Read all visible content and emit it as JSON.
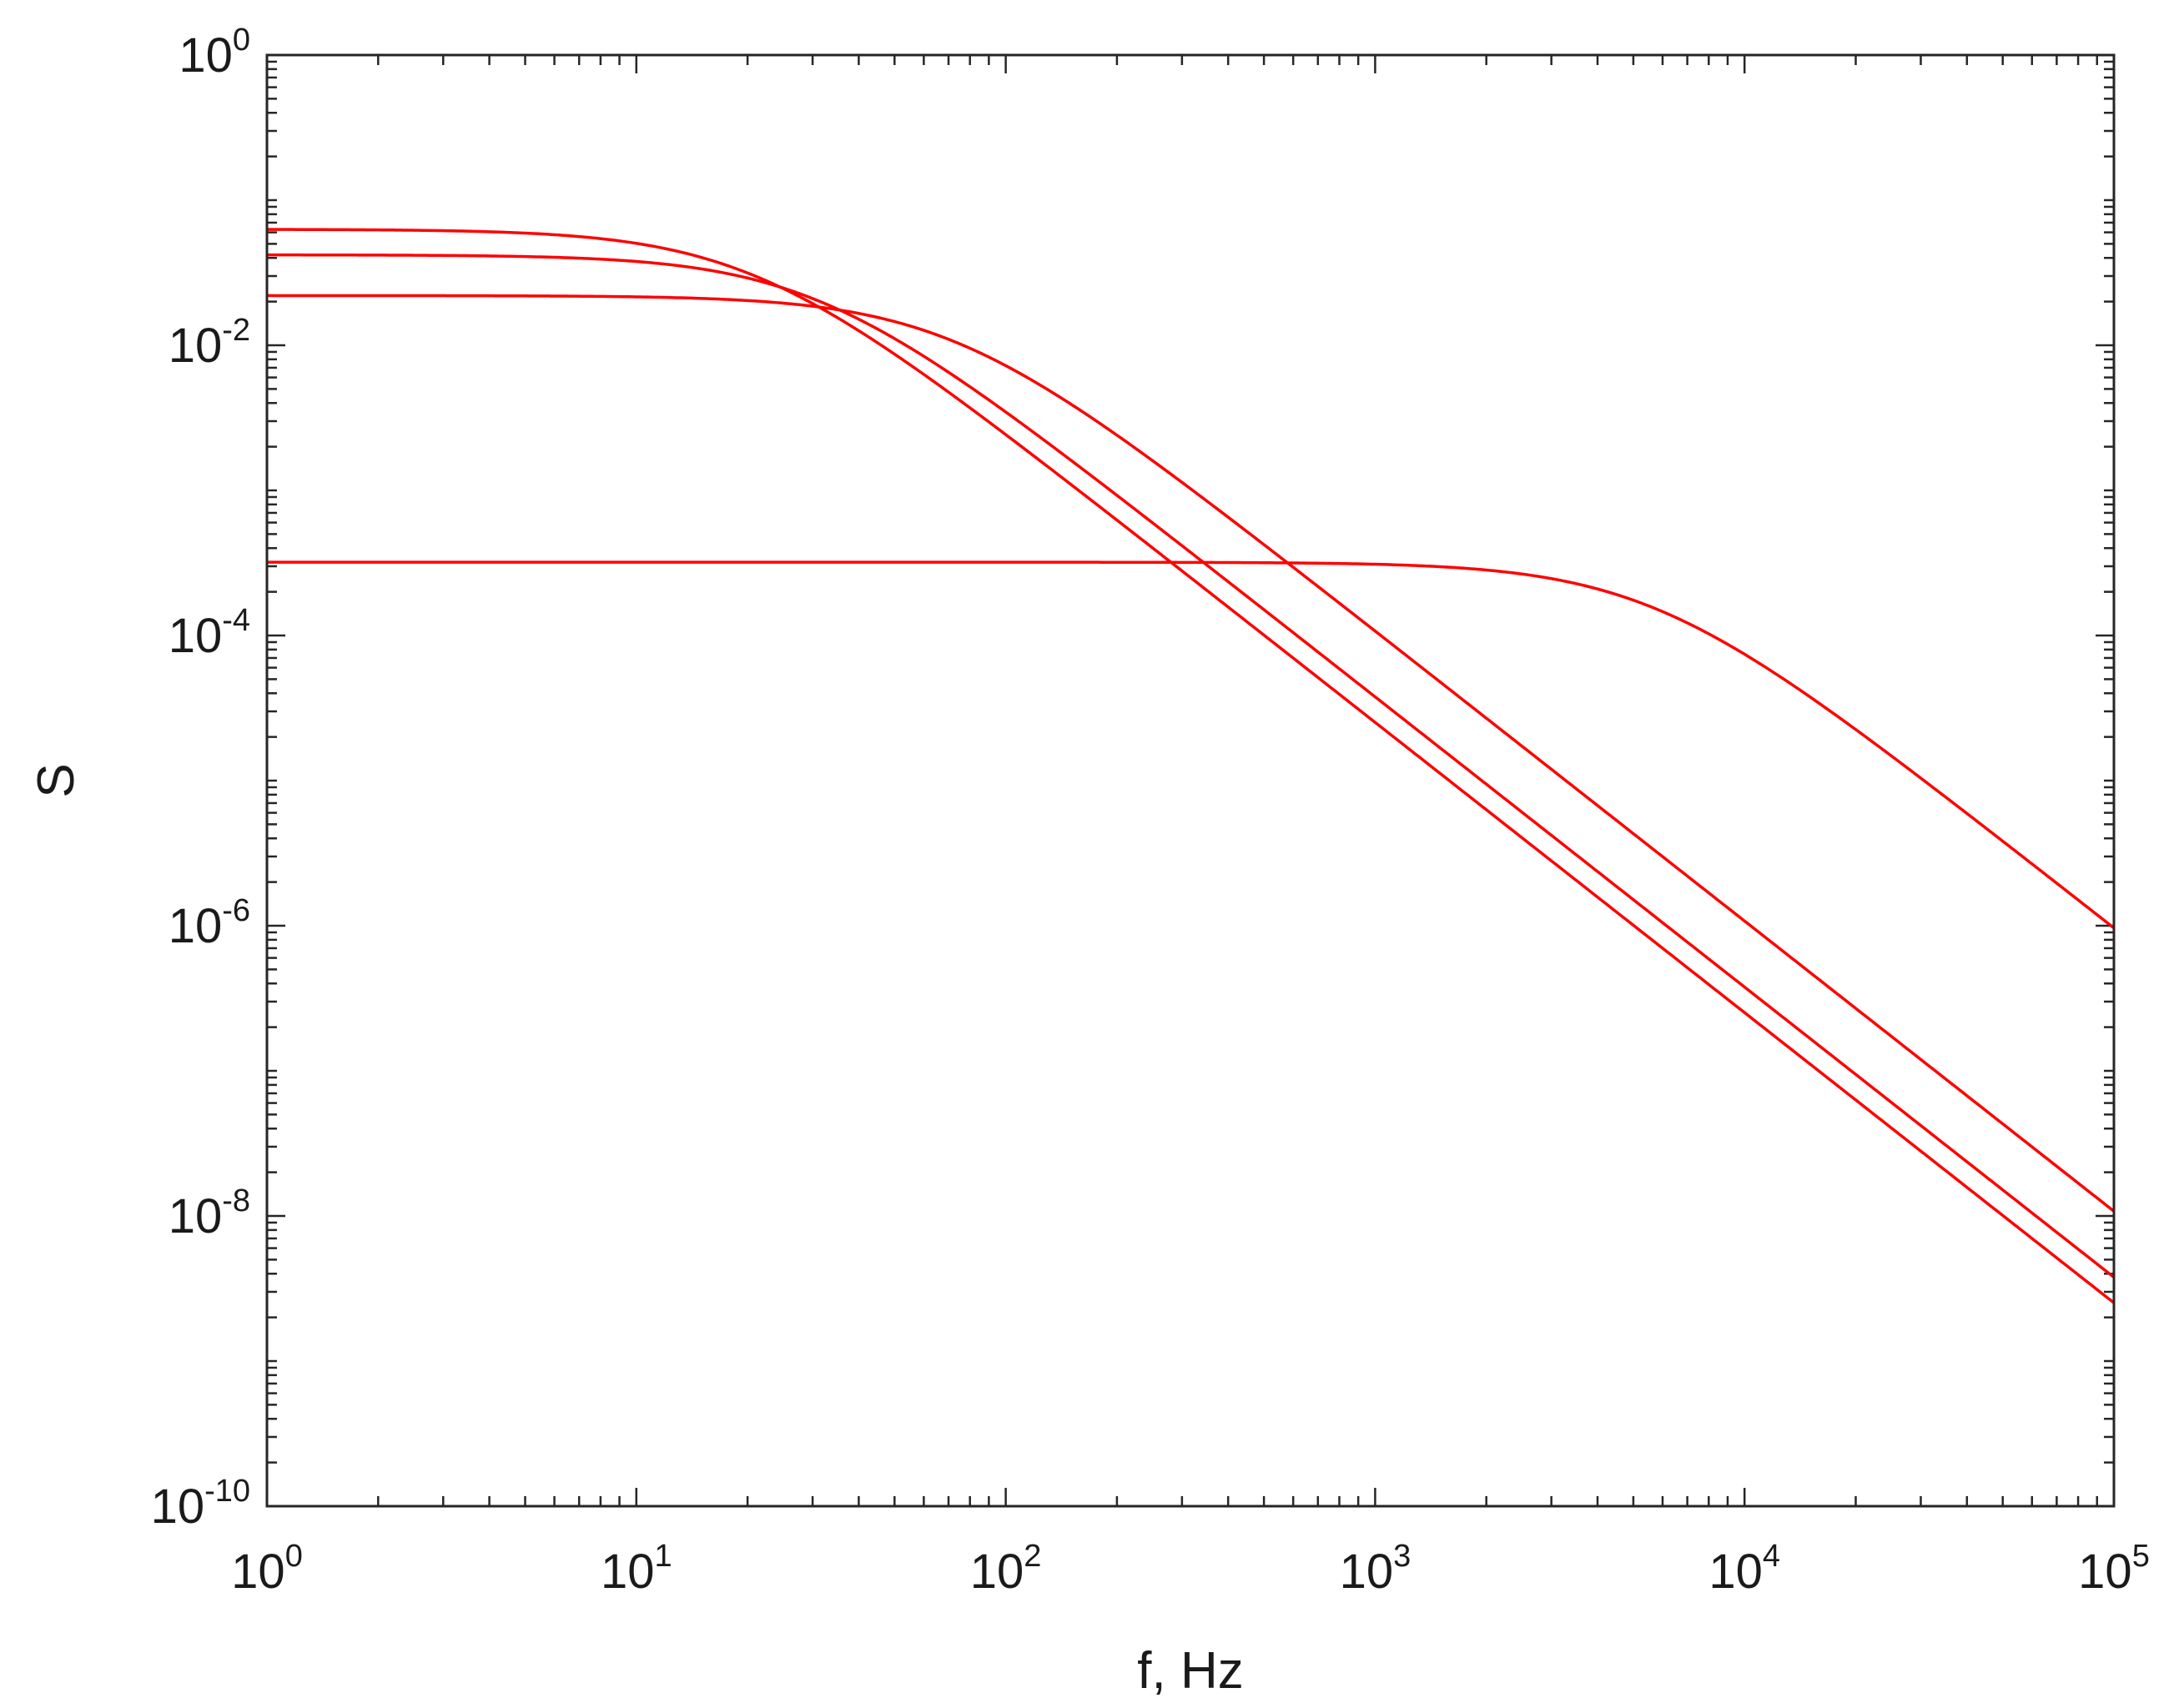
{
  "chart_data": {
    "type": "line",
    "xlabel": "f, Hz",
    "ylabel": "S",
    "xscale": "log",
    "yscale": "log",
    "xlim": [
      1,
      100000
    ],
    "ylim": [
      1e-10,
      1
    ],
    "grid": false,
    "box": true,
    "line_color": "#ff0000",
    "x_ticks": [
      {
        "base": "10",
        "exp": "0"
      },
      {
        "base": "10",
        "exp": "1"
      },
      {
        "base": "10",
        "exp": "2"
      },
      {
        "base": "10",
        "exp": "3"
      },
      {
        "base": "10",
        "exp": "4"
      },
      {
        "base": "10",
        "exp": "5"
      }
    ],
    "y_ticks": [
      {
        "base": "10",
        "exp": "0"
      },
      {
        "base": "10",
        "exp": "-2"
      },
      {
        "base": "10",
        "exp": "-4"
      },
      {
        "base": "10",
        "exp": "-6"
      },
      {
        "base": "10",
        "exp": "-8"
      },
      {
        "base": "10",
        "exp": "-10"
      }
    ],
    "series": [
      {
        "plateau": 0.063,
        "corner_hz": 20,
        "note": "S(f) = plateau / (1 + (f/corner)^2)"
      },
      {
        "plateau": 0.042,
        "corner_hz": 30
      },
      {
        "plateau": 0.022,
        "corner_hz": 70
      },
      {
        "plateau": 0.00032,
        "corner_hz": 5500
      }
    ]
  }
}
